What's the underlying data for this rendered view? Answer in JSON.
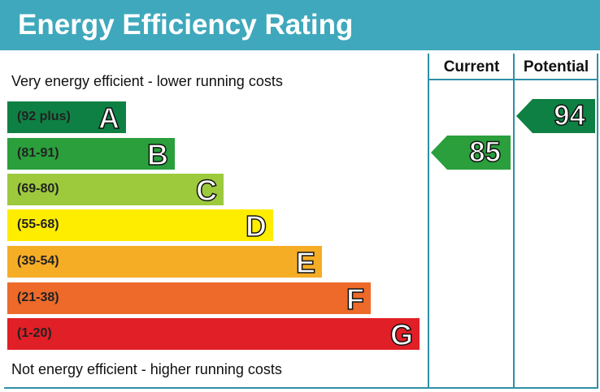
{
  "title": "Energy Efficiency Rating",
  "columns": {
    "current": "Current",
    "potential": "Potential"
  },
  "top_note": "Very energy efficient - lower running costs",
  "bottom_note": "Not energy efficient - higher running costs",
  "chart_data": {
    "type": "bar",
    "title": "Energy Efficiency Rating",
    "bands": [
      {
        "letter": "A",
        "range": "(92 plus)",
        "color": "#0e8043"
      },
      {
        "letter": "B",
        "range": "(81-91)",
        "color": "#2a9f3c"
      },
      {
        "letter": "C",
        "range": "(69-80)",
        "color": "#9cca3c"
      },
      {
        "letter": "D",
        "range": "(55-68)",
        "color": "#ffed00"
      },
      {
        "letter": "E",
        "range": "(39-54)",
        "color": "#f5ad26"
      },
      {
        "letter": "F",
        "range": "(21-38)",
        "color": "#ed6a2a"
      },
      {
        "letter": "G",
        "range": "(1-20)",
        "color": "#e11f26"
      }
    ],
    "current": {
      "value": 85,
      "band": "B",
      "color": "#2a9f3c"
    },
    "potential": {
      "value": 94,
      "band": "A",
      "color": "#0e8043"
    }
  }
}
